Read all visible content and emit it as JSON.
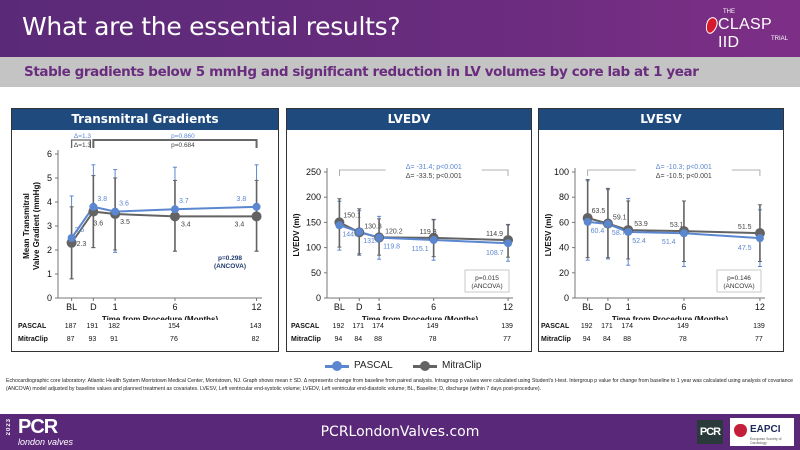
{
  "header": {
    "title": "What are the essential results?",
    "logo": {
      "the": "THE",
      "name": "CLASP IID",
      "trial": "TRIAL"
    }
  },
  "subheader": "Stable gradients below 5 mmHg and significant reduction in LV volumes by core lab at 1 year",
  "colors": {
    "pascal": "#5b87d0",
    "mitraclip": "#636363",
    "panel_title_bg": "#1e4a7e",
    "header_bg": "#5a2a78"
  },
  "legend": {
    "pascal": "PASCAL",
    "mitraclip": "MitraClip"
  },
  "chart_data": [
    {
      "type": "line",
      "title": "Transmitral Gradients",
      "xlabel": "Time from Procedure (Months)",
      "ylabel": "Mean Transmitral Valve Gradient (mmHg)",
      "ylabel_lines": [
        "Mean Transmitral",
        "Valve Gradient (mmHg)"
      ],
      "categories": [
        "BL",
        "D",
        "1",
        "6",
        "12"
      ],
      "x": [
        -1.6,
        0,
        1.6,
        6,
        12
      ],
      "ylim": [
        0,
        6
      ],
      "yticks": [
        "0",
        "1",
        "2",
        "3",
        "4",
        "5",
        "6"
      ],
      "series": [
        {
          "name": "PASCAL",
          "values": [
            2.5,
            3.8,
            3.6,
            3.7,
            3.8
          ],
          "labels": [
            "2.5",
            "3.8",
            "3.6",
            "3.7",
            "3.8"
          ],
          "err_low": [
            0.8,
            2.1,
            1.9,
            1.95,
            1.95
          ],
          "err_high": [
            4.25,
            5.55,
            5.35,
            5.45,
            5.55
          ]
        },
        {
          "name": "MitraClip",
          "values": [
            2.3,
            3.6,
            3.5,
            3.4,
            3.4
          ],
          "labels": [
            "2.3",
            "3.6",
            "3.5",
            "3.4",
            "3.4"
          ],
          "err_low": [
            0.8,
            2.1,
            2.0,
            1.95,
            1.95
          ],
          "err_high": [
            3.8,
            5.1,
            5.0,
            4.9,
            4.9
          ]
        }
      ],
      "annotations": {
        "delta_pascal": "Δ=1.3",
        "delta_mitraclip": "Δ=1.3",
        "p_pascal": "p=0.860",
        "p_mitraclip": "p=0.684",
        "ancova": [
          "p=0.298",
          "(ANCOVA)"
        ]
      },
      "n_at_risk": {
        "PASCAL": [
          "187",
          "191",
          "182",
          "154",
          "143"
        ],
        "MitraClip": [
          "87",
          "93",
          "91",
          "76",
          "82"
        ]
      }
    },
    {
      "type": "line",
      "title": "LVEDV",
      "xlabel": "Time from Procedure (Months)",
      "ylabel": "LVEDV (ml)",
      "ylabel_lines": [
        "LVEDV (ml)"
      ],
      "categories": [
        "BL",
        "D",
        "1",
        "6",
        "12"
      ],
      "x": [
        -1.6,
        0,
        1.6,
        6,
        12
      ],
      "ylim": [
        0,
        250
      ],
      "yticks": [
        "0",
        "50",
        "100",
        "150",
        "200",
        "250"
      ],
      "series": [
        {
          "name": "PASCAL",
          "values": [
            144.3,
            131.3,
            119.8,
            115.1,
            108.7
          ],
          "labels": [
            "144.3",
            "131.3",
            "119.8",
            "115.1",
            "108.7"
          ],
          "err_low": [
            95,
            88,
            77,
            75,
            73
          ],
          "err_high": [
            192,
            173,
            162,
            155,
            145
          ]
        },
        {
          "name": "MitraClip",
          "values": [
            150.1,
            130.3,
            120.2,
            119.3,
            114.9
          ],
          "labels": [
            "150.1",
            "130.3",
            "120.2",
            "119.3",
            "114.9"
          ],
          "err_low": [
            101,
            85,
            85,
            82,
            81
          ],
          "err_high": [
            197,
            177,
            157,
            156,
            146
          ]
        }
      ],
      "annotations": {
        "delta_pascal": "Δ= -31.4; p<0.001",
        "delta_mitraclip": "Δ= -33.5; p<0.001",
        "ancova": [
          "p=0.015",
          "(ANCOVA)"
        ]
      },
      "n_at_risk": {
        "PASCAL": [
          "192",
          "171",
          "174",
          "149",
          "139"
        ],
        "MitraClip": [
          "94",
          "84",
          "88",
          "78",
          "77"
        ]
      }
    },
    {
      "type": "line",
      "title": "LVESV",
      "xlabel": "Time from Procedure (Months)",
      "ylabel": "LVESV (ml)",
      "ylabel_lines": [
        "LVESV (ml)"
      ],
      "categories": [
        "BL",
        "D",
        "1",
        "6",
        "12"
      ],
      "x": [
        -1.6,
        0,
        1.6,
        6,
        12
      ],
      "ylim": [
        0,
        100
      ],
      "yticks": [
        "0",
        "20",
        "40",
        "60",
        "80",
        "100"
      ],
      "series": [
        {
          "name": "PASCAL",
          "values": [
            60.4,
            58.7,
            52.4,
            51.4,
            47.5
          ],
          "labels": [
            "60.4",
            "58.7",
            "52.4",
            "51.4",
            "47.5"
          ],
          "err_low": [
            30,
            31,
            26,
            25,
            25
          ],
          "err_high": [
            93,
            86,
            79,
            77,
            70
          ]
        },
        {
          "name": "MitraClip",
          "values": [
            63.5,
            59.1,
            53.9,
            53.1,
            51.5
          ],
          "labels": [
            "63.5",
            "59.1",
            "53.9",
            "53.1",
            "51.5"
          ],
          "err_low": [
            32,
            32,
            31,
            29,
            29
          ],
          "err_high": [
            94,
            87,
            77,
            77,
            74
          ]
        }
      ],
      "annotations": {
        "delta_pascal": "Δ= -10.3; p<0.001",
        "delta_mitraclip": "Δ= -10.5; p<0.001",
        "ancova": [
          "p=0.146",
          "(ANCOVA)"
        ]
      },
      "n_at_risk": {
        "PASCAL": [
          "192",
          "171",
          "174",
          "149",
          "139"
        ],
        "MitraClip": [
          "94",
          "84",
          "88",
          "78",
          "77"
        ]
      }
    }
  ],
  "footnote": "Echocardiographic core laboratory: Atlantic Health System Morristown Medical Center, Morristown, NJ. Graph shows mean ± SD. Δ represents change from baseline from paired analysis. Intragroup p values were calculated using Student's t-test. Intergroup p value for change from baseline to 1 year was calculated using analysis of covariance (ANCOVA) model adjusted by baseline values and planned treatment as covariates. LVESV, Left ventricular end-systolic volume; LVEDV, Left ventricular end-diastolic volume; BL, Baseline; D, discharge (within 7 days post-procedure).",
  "footer": {
    "year": "2023",
    "brand": "PCR",
    "brand_sub": "london valves",
    "url": "PCRLondonValves.com",
    "pcr_small": "PCR",
    "eapci": "EAPCI",
    "eapci_sub": "European Society of Cardiology"
  }
}
